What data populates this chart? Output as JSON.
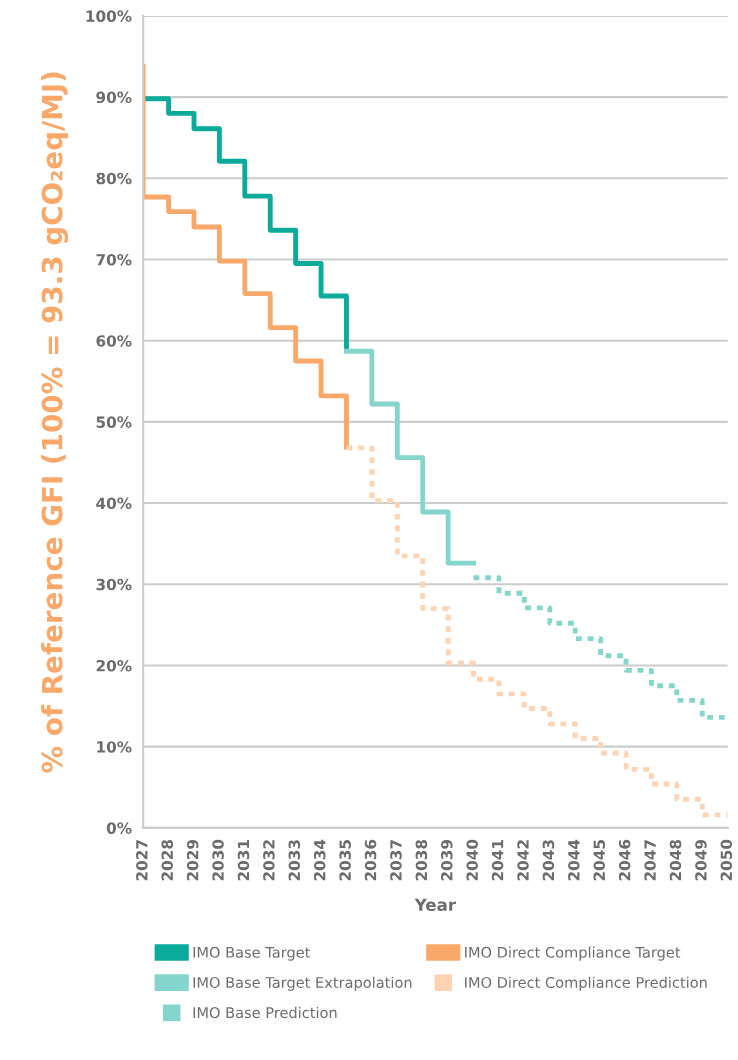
{
  "chart_data": {
    "type": "step",
    "xlabel": "Year",
    "ylabel": "% of Reference GFI (100% = 93.3 gCO₂eq/MJ)",
    "xlim": [
      2027,
      2050
    ],
    "xticks": [
      2027,
      2028,
      2029,
      2030,
      2031,
      2032,
      2033,
      2034,
      2035,
      2036,
      2037,
      2038,
      2039,
      2040,
      2041,
      2042,
      2043,
      2044,
      2045,
      2046,
      2047,
      2048,
      2049,
      2050
    ],
    "ylim": [
      0,
      100
    ],
    "yticks": [
      {
        "value": 0,
        "label": "0%"
      },
      {
        "value": 10,
        "label": "10%"
      },
      {
        "value": 20,
        "label": "20%"
      },
      {
        "value": 30,
        "label": "30%"
      },
      {
        "value": 40,
        "label": "40%"
      },
      {
        "value": 50,
        "label": "50%"
      },
      {
        "value": 60,
        "label": "60%"
      },
      {
        "value": 70,
        "label": "70%"
      },
      {
        "value": 80,
        "label": "80%"
      },
      {
        "value": 90,
        "label": "90%"
      },
      {
        "value": 100,
        "label": "100%"
      }
    ],
    "grid": "y",
    "legend": "bottom",
    "series": [
      {
        "name": "IMO Base Target",
        "color": "#0aab9a",
        "line_style": "solid",
        "x": [
          2027,
          2028,
          2029,
          2030,
          2031,
          2032,
          2033,
          2034,
          2035
        ],
        "values": [
          89.8,
          88.0,
          86.1,
          82.1,
          77.8,
          73.6,
          69.5,
          65.5,
          58.9
        ]
      },
      {
        "name": "IMO Base Target Extrapolation",
        "color": "#84d6cc",
        "line_style": "solid",
        "x": [
          2035,
          2036,
          2037,
          2038,
          2039,
          2040
        ],
        "values": [
          58.7,
          52.2,
          45.6,
          38.9,
          32.6,
          32.6
        ]
      },
      {
        "name": "IMO Base Prediction",
        "color": "#84d6cc",
        "line_style": "dotted",
        "x": [
          2040,
          2041,
          2042,
          2043,
          2044,
          2045,
          2046,
          2047,
          2048,
          2049,
          2050
        ],
        "values": [
          30.8,
          28.9,
          27.1,
          25.2,
          23.3,
          21.2,
          19.4,
          17.5,
          15.7,
          13.6,
          13.6
        ]
      },
      {
        "name": "IMO Direct Compliance Target",
        "color": "#f9a86a",
        "line_style": "solid",
        "x": [
          2027,
          2027,
          2028,
          2029,
          2030,
          2031,
          2032,
          2033,
          2034,
          2035
        ],
        "values": [
          93.8,
          77.7,
          75.9,
          74.0,
          69.8,
          65.8,
          61.6,
          57.5,
          53.2,
          46.9
        ]
      },
      {
        "name": "IMO Direct Compliance Prediction",
        "color": "#fdd3b3",
        "line_style": "dotted",
        "x": [
          2035,
          2036,
          2037,
          2038,
          2039,
          2040,
          2041,
          2042,
          2043,
          2044,
          2045,
          2046,
          2047,
          2048,
          2049,
          2050
        ],
        "values": [
          46.8,
          40.3,
          33.5,
          27.0,
          20.3,
          18.3,
          16.5,
          14.7,
          12.8,
          11.0,
          9.2,
          7.2,
          5.4,
          3.5,
          1.6,
          1.6
        ]
      }
    ]
  }
}
